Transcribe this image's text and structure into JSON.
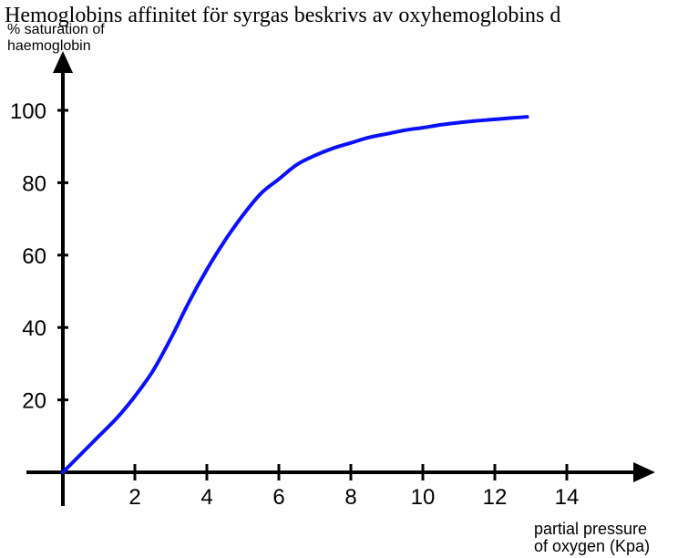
{
  "header_text": "Hemoglobins affinitet för syrgas beskrivs av oxyhemoglobins d",
  "chart_data": {
    "type": "line",
    "title": "",
    "ylabel_lines": [
      "% saturation of",
      "haemoglobin"
    ],
    "xlabel_lines": [
      "partial pressure",
      "of oxygen (Kpa)"
    ],
    "xlim": [
      0,
      16
    ],
    "ylim": [
      0,
      115
    ],
    "x_ticks": [
      2,
      4,
      6,
      8,
      10,
      12,
      14
    ],
    "y_ticks": [
      20,
      40,
      60,
      80,
      100
    ],
    "grid": false,
    "series": [
      {
        "color": "#0a10ff",
        "x": [
          0,
          0.5,
          1,
          1.5,
          2,
          2.5,
          3,
          3.5,
          4,
          4.5,
          5,
          5.5,
          6,
          6.5,
          7,
          7.5,
          8,
          8.5,
          9,
          9.5,
          10,
          10.5,
          11,
          11.5,
          12,
          12.5,
          12.9
        ],
        "y": [
          0,
          5,
          10,
          15,
          21,
          28,
          37,
          47,
          56,
          64,
          71,
          77,
          81,
          85,
          87.5,
          89.5,
          91,
          92.5,
          93.5,
          94.5,
          95.2,
          96,
          96.6,
          97.1,
          97.5,
          97.9,
          98.2
        ]
      }
    ]
  },
  "colors": {
    "axis": "#000000",
    "curve": "#0a10ff",
    "text": "#000000"
  }
}
